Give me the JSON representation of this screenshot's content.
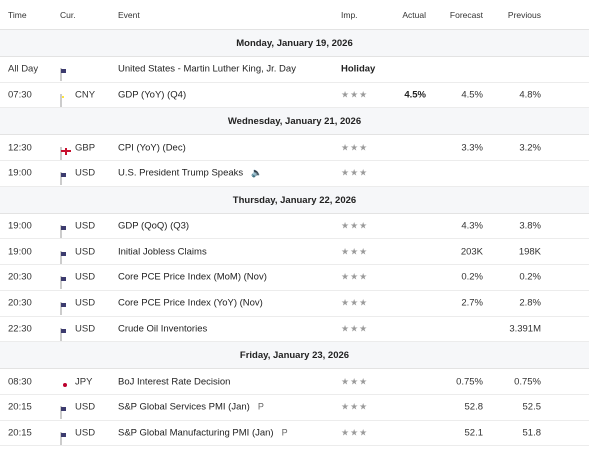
{
  "header": {
    "time": "Time",
    "cur": "Cur.",
    "event": "Event",
    "imp": "Imp.",
    "actual": "Actual",
    "forecast": "Forecast",
    "previous": "Previous"
  },
  "days": [
    {
      "label": "Monday, January 19, 2026",
      "rows": [
        {
          "time": "All Day",
          "flag": "us",
          "code": "",
          "event": "United States - Martin Luther King, Jr. Day",
          "holiday": "Holiday"
        },
        {
          "time": "07:30",
          "flag": "cn",
          "code": "CNY",
          "event": "GDP (YoY) (Q4)",
          "imp": "★★★",
          "actual": "4.5%",
          "forecast": "4.5%",
          "previous": "4.8%"
        }
      ]
    },
    {
      "label": "Wednesday, January 21, 2026",
      "rows": [
        {
          "time": "12:30",
          "flag": "gb",
          "code": "GBP",
          "event": "CPI (YoY) (Dec)",
          "imp": "★★★",
          "actual": "",
          "forecast": "3.3%",
          "previous": "3.2%"
        },
        {
          "time": "19:00",
          "flag": "us",
          "code": "USD",
          "event": "U.S. President Trump Speaks",
          "icon": "speaker-icon",
          "iconGlyph": "🔈",
          "imp": "★★★",
          "actual": "",
          "forecast": "",
          "previous": ""
        }
      ]
    },
    {
      "label": "Thursday, January 22, 2026",
      "rows": [
        {
          "time": "19:00",
          "flag": "us",
          "code": "USD",
          "event": "GDP (QoQ) (Q3)",
          "imp": "★★★",
          "actual": "",
          "forecast": "4.3%",
          "previous": "3.8%"
        },
        {
          "time": "19:00",
          "flag": "us",
          "code": "USD",
          "event": "Initial Jobless Claims",
          "imp": "★★★",
          "actual": "",
          "forecast": "203K",
          "previous": "198K"
        },
        {
          "time": "20:30",
          "flag": "us",
          "code": "USD",
          "event": "Core PCE Price Index (MoM) (Nov)",
          "imp": "★★★",
          "actual": "",
          "forecast": "0.2%",
          "previous": "0.2%"
        },
        {
          "time": "20:30",
          "flag": "us",
          "code": "USD",
          "event": "Core PCE Price Index (YoY) (Nov)",
          "imp": "★★★",
          "actual": "",
          "forecast": "2.7%",
          "previous": "2.8%"
        },
        {
          "time": "22:30",
          "flag": "us",
          "code": "USD",
          "event": "Crude Oil Inventories",
          "imp": "★★★",
          "actual": "",
          "forecast": "",
          "previous": "3.391M"
        }
      ]
    },
    {
      "label": "Friday, January 23, 2026",
      "rows": [
        {
          "time": "08:30",
          "flag": "jp",
          "code": "JPY",
          "event": "BoJ Interest Rate Decision",
          "imp": "★★★",
          "actual": "",
          "forecast": "0.75%",
          "previous": "0.75%"
        },
        {
          "time": "20:15",
          "flag": "us",
          "code": "USD",
          "event": "S&P Global Services PMI  (Jan)",
          "icon": "preliminary-icon",
          "iconGlyph": "P",
          "imp": "★★★",
          "actual": "",
          "forecast": "52.8",
          "previous": "52.5"
        },
        {
          "time": "20:15",
          "flag": "us",
          "code": "USD",
          "event": "S&P Global Manufacturing PMI  (Jan)",
          "icon": "preliminary-icon",
          "iconGlyph": "P",
          "imp": "★★★",
          "actual": "",
          "forecast": "52.1",
          "previous": "51.8"
        }
      ]
    }
  ]
}
